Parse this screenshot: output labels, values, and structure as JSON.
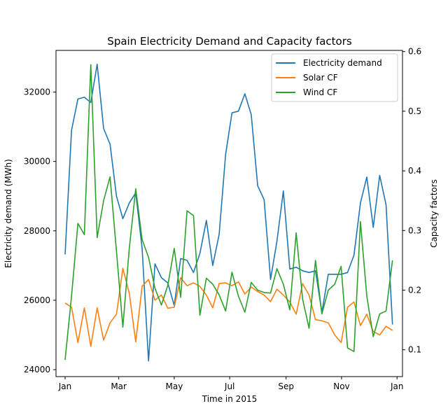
{
  "chart_data": {
    "type": "line",
    "title": "Spain Electricity Demand and Capacity factors",
    "xlabel": "Time in 2015",
    "ylabel_left": "Electricity demand (MWh)",
    "ylabel_right": "Capacity factors",
    "x_ticks": [
      "Jan",
      "Mar",
      "May",
      "Jul",
      "Sep",
      "Nov",
      "Jan"
    ],
    "y_left_ticks": [
      "24000",
      "26000",
      "28000",
      "30000",
      "32000"
    ],
    "y_right_ticks": [
      "0.1",
      "0.2",
      "0.3",
      "0.4",
      "0.5",
      "0.6"
    ],
    "x_start": "2015-01-01",
    "x_end": "2015-12-27",
    "x_tick_dates": [
      "2015-01-01",
      "2015-03-01",
      "2015-05-01",
      "2015-07-01",
      "2015-09-01",
      "2015-11-01",
      "2016-01-01"
    ],
    "y_left_range": [
      23800,
      33200
    ],
    "y_right_range": [
      0.055,
      0.602
    ],
    "legend_position": "top-right",
    "grid": false,
    "series": [
      {
        "name": "Electricity demand",
        "axis": "left",
        "color": "#1f77b4",
        "values": [
          27320,
          30900,
          31800,
          31850,
          31700,
          32800,
          30950,
          30500,
          29000,
          28350,
          28800,
          29100,
          27500,
          24250,
          27050,
          26650,
          26500,
          25850,
          27200,
          27150,
          26800,
          27350,
          28300,
          27000,
          27900,
          30200,
          31400,
          31450,
          31950,
          31350,
          29300,
          28900,
          26600,
          27700,
          29150,
          26900,
          26950,
          26850,
          26800,
          26850,
          25650,
          26750,
          26750,
          26750,
          26800,
          27300,
          28800,
          29550,
          28100,
          29600,
          28750,
          25300
        ]
      },
      {
        "name": "Solar CF",
        "axis": "left",
        "color": "#ff7f0e",
        "values": [
          25920,
          25800,
          24780,
          25780,
          24670,
          25780,
          24850,
          25350,
          25600,
          26920,
          26200,
          24800,
          26400,
          26600,
          26000,
          26150,
          25770,
          25800,
          26650,
          26420,
          26500,
          26400,
          26150,
          25780,
          26480,
          26500,
          26420,
          26530,
          26180,
          26380,
          26250,
          26150,
          25960,
          26320,
          26150,
          25950,
          25600,
          26480,
          26150,
          25440,
          25410,
          25350,
          25000,
          24780,
          25800,
          25950,
          25270,
          25600,
          25100,
          25000,
          25250,
          25130
        ]
      },
      {
        "name": "Wind CF",
        "axis": "right",
        "color": "#2ca02c",
        "values": [
          0.083,
          0.19,
          0.312,
          0.293,
          0.578,
          0.288,
          0.35,
          0.39,
          0.265,
          0.138,
          0.27,
          0.37,
          0.285,
          0.255,
          0.203,
          0.175,
          0.208,
          0.27,
          0.188,
          0.333,
          0.325,
          0.158,
          0.22,
          0.21,
          0.192,
          0.165,
          0.23,
          0.19,
          0.163,
          0.213,
          0.2,
          0.196,
          0.195,
          0.236,
          0.21,
          0.167,
          0.296,
          0.185,
          0.136,
          0.25,
          0.16,
          0.2,
          0.21,
          0.24,
          0.103,
          0.097,
          0.315,
          0.19,
          0.122,
          0.16,
          0.165,
          0.25
        ]
      }
    ]
  }
}
